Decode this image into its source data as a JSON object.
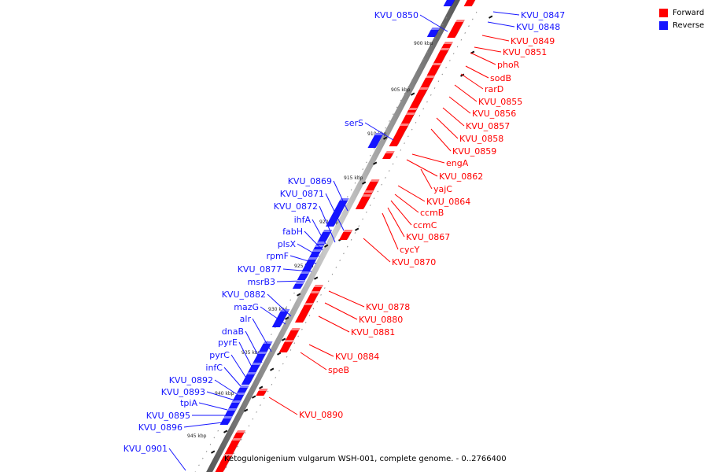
{
  "legend": {
    "forward_label": "Forward",
    "reverse_label": "Reverse",
    "forward_color": "#ff0000",
    "reverse_color": "#1515ff"
  },
  "caption": "Ketogulonigenium vulgarum WSH-001, complete genome. - 0..2766400",
  "kbp_ticks": [
    "900 kbp",
    "905 kbp",
    "910 kbp",
    "915 kbp",
    "920 kbp",
    "925 kbp",
    "930 kbp",
    "935 kbp",
    "940 kbp",
    "945 kbp"
  ],
  "forward_genes": [
    "KVU_0849",
    "KVU_0851",
    "phoR",
    "sodB",
    "rarD",
    "KVU_0855",
    "KVU_0856",
    "KVU_0857",
    "KVU_0858",
    "KVU_0859",
    "engA",
    "KVU_0862",
    "yajC",
    "KVU_0864",
    "ccmB",
    "ccmC",
    "KVU_0867",
    "cycY",
    "KVU_0870",
    "KVU_0878",
    "KVU_0880",
    "KVU_0881",
    "KVU_0884",
    "speB",
    "KVU_0890"
  ],
  "reverse_genes_right": [
    "KVU_0847",
    "KVU_0848"
  ],
  "reverse_genes_left": [
    "KVU_0850",
    "serS",
    "KVU_0869",
    "KVU_0871",
    "KVU_0872",
    "ihfA",
    "fabH",
    "plsX",
    "rpmF",
    "KVU_0877",
    "msrB3",
    "KVU_0882",
    "mazG",
    "alr",
    "dnaB",
    "pyrE",
    "pyrC",
    "infC",
    "KVU_0892",
    "KVU_0893",
    "tpiA",
    "KVU_0895",
    "KVU_0896",
    "KVU_0901"
  ]
}
